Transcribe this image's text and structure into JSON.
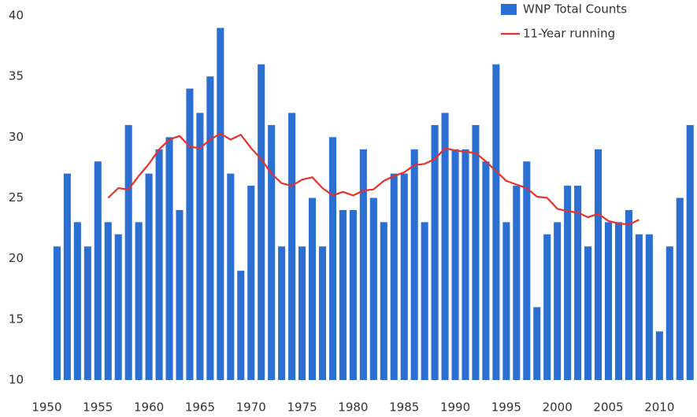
{
  "chart_data": {
    "type": "bar",
    "series": [
      {
        "name": "WNP Total Counts",
        "color": "#2b6fd3",
        "type": "bar",
        "x": [
          1951,
          1952,
          1953,
          1954,
          1955,
          1956,
          1957,
          1958,
          1959,
          1960,
          1961,
          1962,
          1963,
          1964,
          1965,
          1966,
          1967,
          1968,
          1969,
          1970,
          1971,
          1972,
          1973,
          1974,
          1975,
          1976,
          1977,
          1978,
          1979,
          1980,
          1981,
          1982,
          1983,
          1984,
          1985,
          1986,
          1987,
          1988,
          1989,
          1990,
          1991,
          1992,
          1993,
          1994,
          1995,
          1996,
          1997,
          1998,
          1999,
          2000,
          2001,
          2002,
          2003,
          2004,
          2005,
          2006,
          2007,
          2008,
          2009,
          2010,
          2011,
          2012,
          2013
        ],
        "values": [
          21,
          27,
          23,
          21,
          28,
          23,
          22,
          31,
          23,
          27,
          29,
          30,
          24,
          34,
          32,
          35,
          39,
          27,
          19,
          26,
          36,
          31,
          21,
          32,
          21,
          25,
          21,
          30,
          24,
          24,
          29,
          25,
          23,
          27,
          27,
          29,
          23,
          31,
          32,
          29,
          29,
          31,
          28,
          36,
          23,
          26,
          28,
          16,
          22,
          23,
          26,
          26,
          21,
          29,
          23,
          23,
          24,
          22,
          22,
          14,
          21,
          25,
          31
        ]
      },
      {
        "name": "11-Year running",
        "color": "#e8302c",
        "type": "line",
        "x": [
          1956,
          1957,
          1958,
          1959,
          1960,
          1961,
          1962,
          1963,
          1964,
          1965,
          1966,
          1967,
          1968,
          1969,
          1970,
          1971,
          1972,
          1973,
          1974,
          1975,
          1976,
          1977,
          1978,
          1979,
          1980,
          1981,
          1982,
          1983,
          1984,
          1985,
          1986,
          1987,
          1988,
          1989,
          1990,
          1991,
          1992,
          1993,
          1994,
          1995,
          1996,
          1997,
          1998,
          1999,
          2000,
          2001,
          2002,
          2003,
          2004,
          2005,
          2006,
          2007,
          2008
        ],
        "values": [
          25,
          25.8,
          25.7,
          26.8,
          27.8,
          29,
          29.8,
          30.1,
          29.2,
          29.1,
          29.8,
          30.3,
          29.8,
          30.2,
          29.1,
          28.2,
          27,
          26.2,
          26,
          26.5,
          26.7,
          25.8,
          25.2,
          25.5,
          25.2,
          25.6,
          25.7,
          26.4,
          26.8,
          27.1,
          27.7,
          27.8,
          28.2,
          29.1,
          28.9,
          28.8,
          28.7,
          28,
          27.2,
          26.4,
          26.1,
          25.8,
          25.1,
          25,
          24.1,
          23.9,
          23.8,
          23.4,
          23.7,
          23.1,
          22.9,
          22.8,
          23.2
        ]
      }
    ],
    "xlim": [
      1948.5,
      2013.6
    ],
    "xticks": [
      1950,
      1955,
      1960,
      1965,
      1970,
      1975,
      1980,
      1985,
      1990,
      1995,
      2000,
      2005,
      2010
    ],
    "ylim": [
      10,
      40
    ],
    "yticks": [
      10,
      15,
      20,
      25,
      30,
      35,
      40
    ],
    "legend": "upper right"
  }
}
